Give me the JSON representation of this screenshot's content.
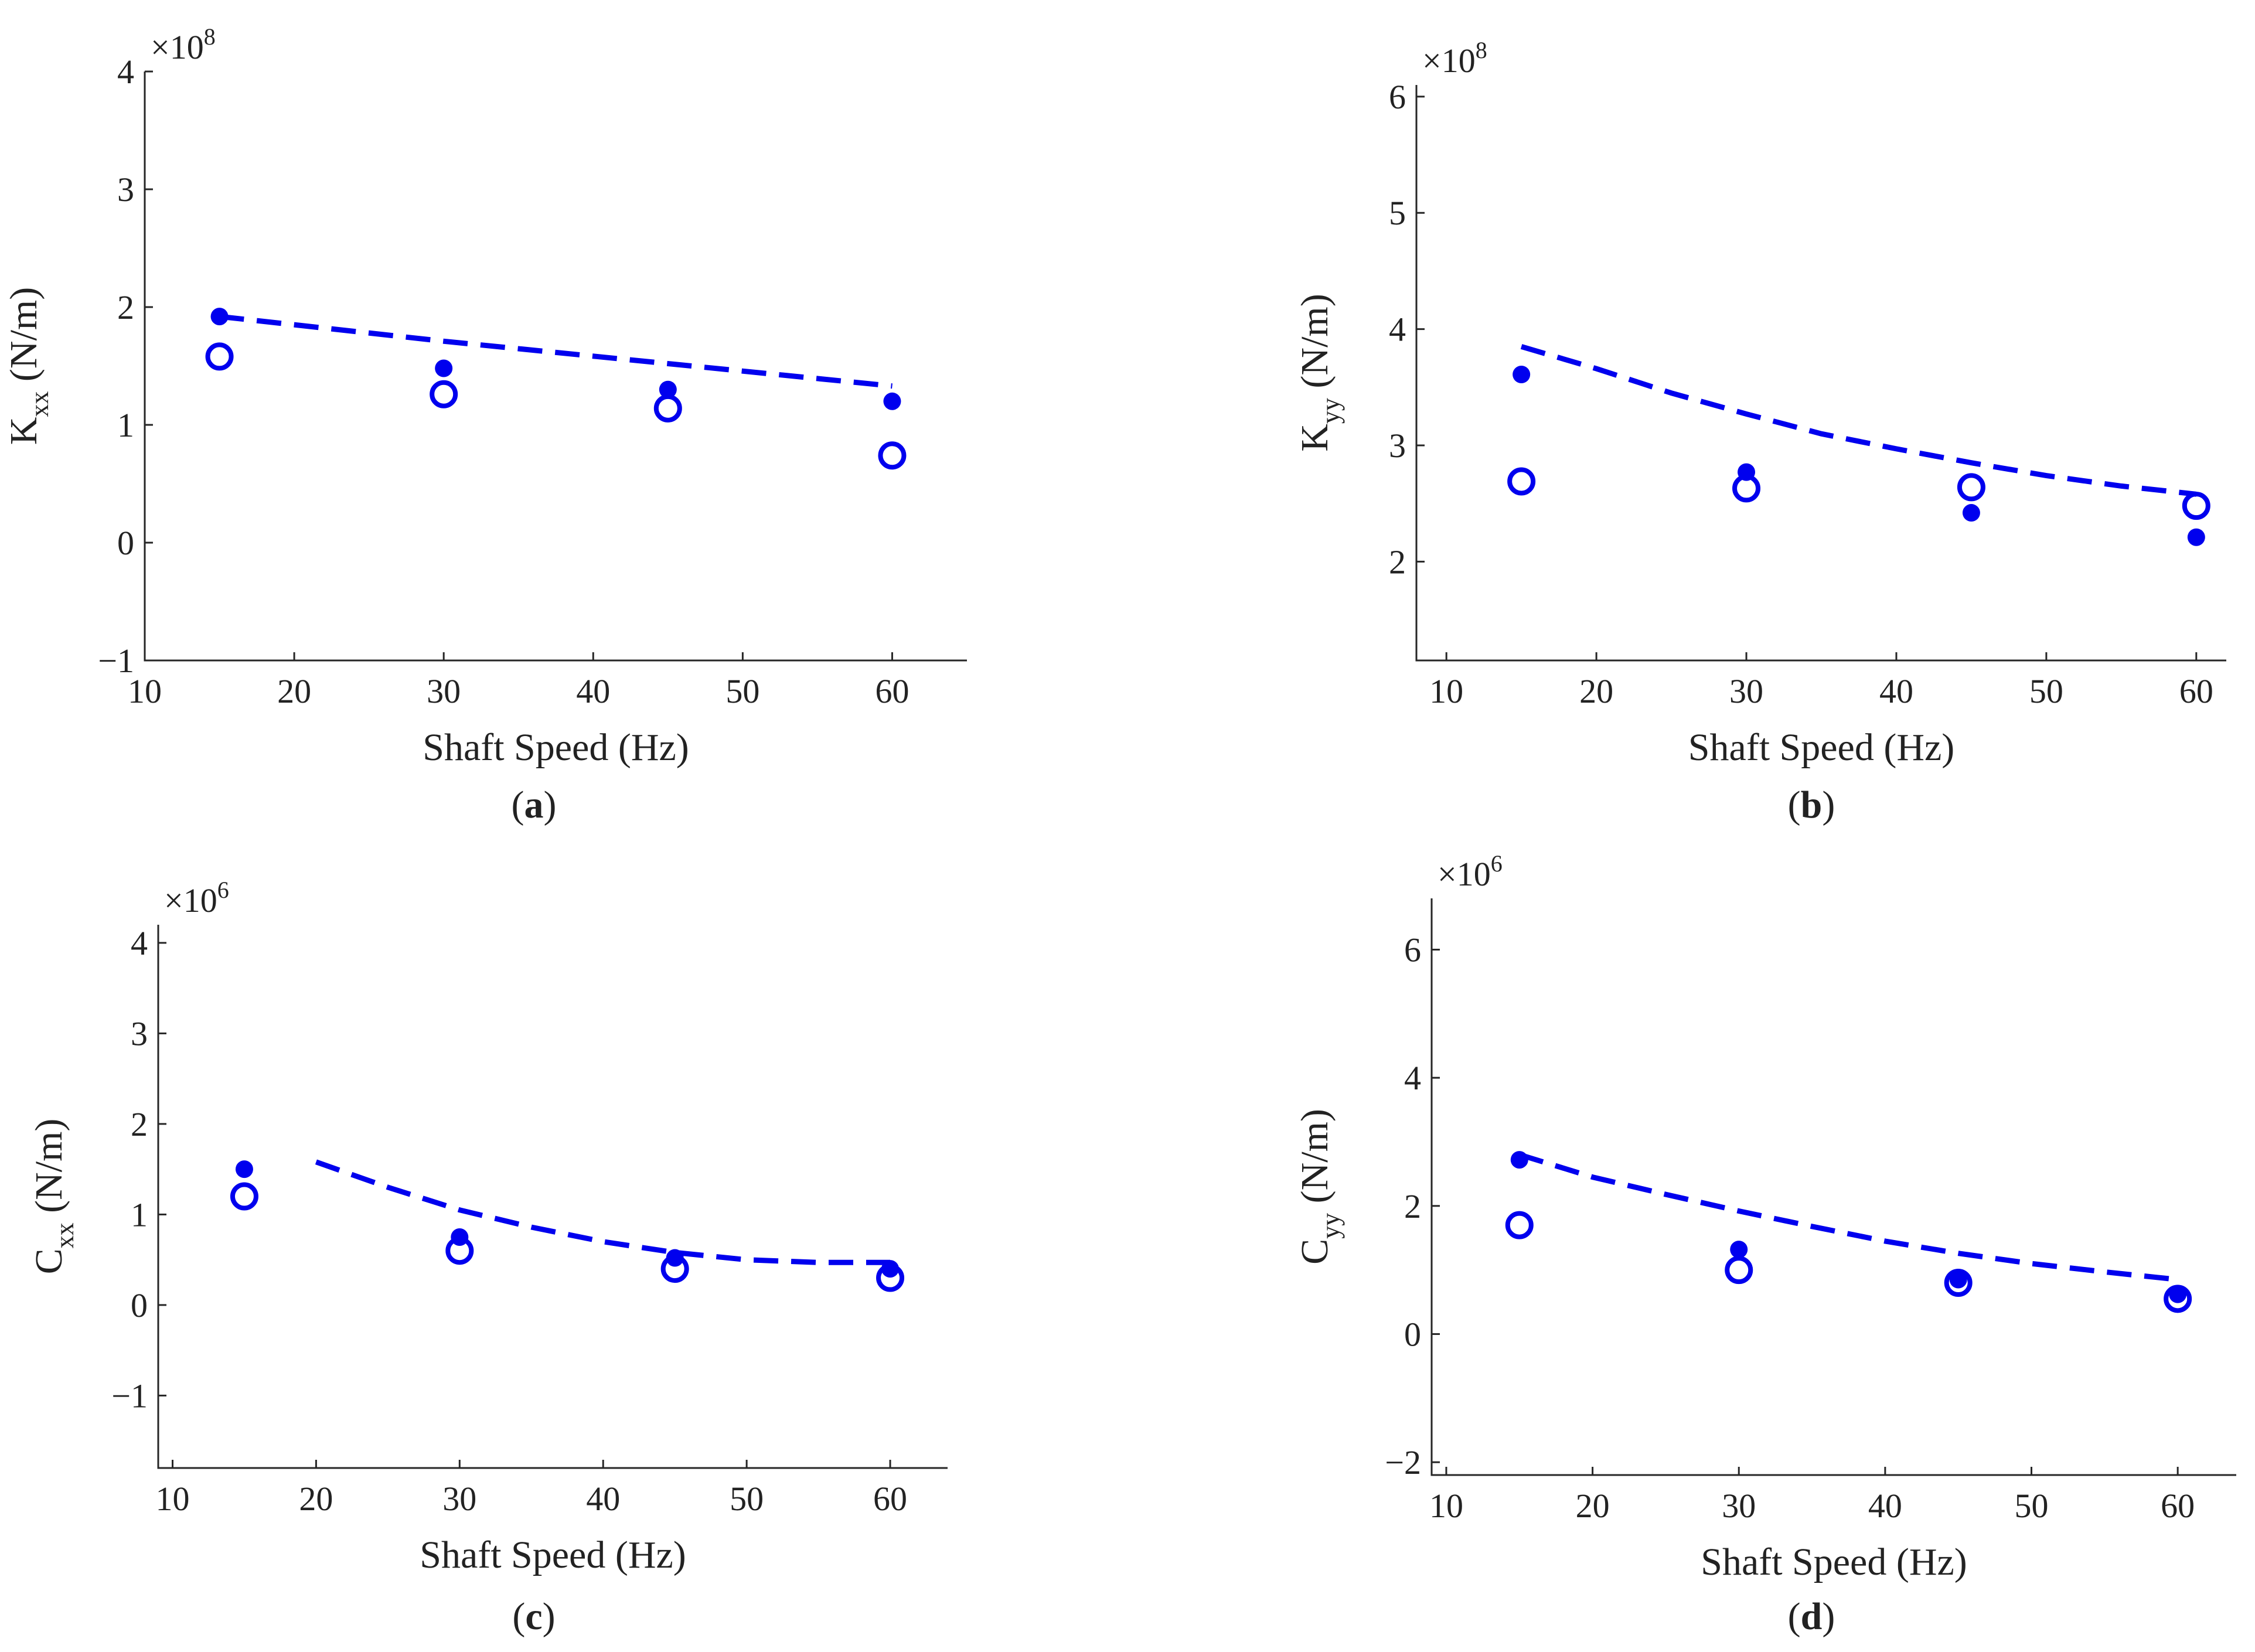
{
  "colors": {
    "series": "#0000ee",
    "axis": "#262626",
    "text": "#222222"
  },
  "chart_data": [
    {
      "id": "a",
      "type": "scatter",
      "panel_label": "a",
      "xlabel": "Shaft Speed (Hz)",
      "ylabel": {
        "main": "K",
        "sub": "xx",
        "unit": " (N/m)"
      },
      "y_multiplier": {
        "base": "×10",
        "exp": "8"
      },
      "xlim": [
        10,
        65
      ],
      "ylim": [
        -1,
        4
      ],
      "xticks": [
        10,
        20,
        30,
        40,
        50,
        60
      ],
      "yticks": [
        -1,
        0,
        1,
        2,
        3,
        4
      ],
      "ytick_labels": [
        "−1",
        "0",
        "1",
        "2",
        "3",
        "4"
      ],
      "series": [
        {
          "name": "filled",
          "style": "filled-dot",
          "x": [
            15,
            30,
            45,
            60
          ],
          "y": [
            1.92,
            1.48,
            1.3,
            1.2
          ]
        },
        {
          "name": "open",
          "style": "open-circle",
          "x": [
            15,
            30,
            45,
            60
          ],
          "y": [
            1.58,
            1.26,
            1.14,
            0.74
          ]
        },
        {
          "name": "dashed",
          "style": "dashed-line",
          "x": [
            15,
            30,
            45,
            60
          ],
          "y": [
            1.92,
            1.71,
            1.52,
            1.33
          ]
        }
      ]
    },
    {
      "id": "b",
      "type": "scatter",
      "panel_label": "b",
      "xlabel": "Shaft Speed (Hz)",
      "ylabel": {
        "main": "K",
        "sub": "yy",
        "unit": " (N/m)"
      },
      "y_multiplier": {
        "base": "×10",
        "exp": "8"
      },
      "xlim": [
        8,
        62
      ],
      "ylim": [
        1.15,
        6.1
      ],
      "xticks": [
        10,
        20,
        30,
        40,
        50,
        60
      ],
      "yticks": [
        2,
        3,
        4,
        5,
        6
      ],
      "ytick_labels": [
        "2",
        "3",
        "4",
        "5",
        "6"
      ],
      "series": [
        {
          "name": "filled",
          "style": "filled-dot",
          "x": [
            15,
            30,
            45,
            60
          ],
          "y": [
            3.61,
            2.77,
            2.42,
            2.21
          ]
        },
        {
          "name": "open",
          "style": "open-circle",
          "x": [
            15,
            30,
            45,
            60
          ],
          "y": [
            2.69,
            2.63,
            2.64,
            2.48
          ]
        },
        {
          "name": "dashed",
          "style": "dashed-line",
          "x": [
            15,
            20,
            25,
            30,
            35,
            40,
            45,
            50,
            55,
            60
          ],
          "y": [
            3.85,
            3.66,
            3.45,
            3.27,
            3.1,
            2.97,
            2.85,
            2.74,
            2.65,
            2.58
          ]
        }
      ]
    },
    {
      "id": "c",
      "type": "scatter",
      "panel_label": "c",
      "xlabel": "Shaft Speed (Hz)",
      "ylabel": {
        "main": "C",
        "sub": "xx",
        "unit": " (N/m)"
      },
      "y_multiplier": {
        "base": "×10",
        "exp": "6"
      },
      "xlim": [
        9,
        64
      ],
      "ylim": [
        -1.8,
        4.2
      ],
      "xticks": [
        10,
        20,
        30,
        40,
        50,
        60
      ],
      "yticks": [
        -1,
        0,
        1,
        2,
        3,
        4
      ],
      "ytick_labels": [
        "−1",
        "0",
        "1",
        "2",
        "3",
        "4"
      ],
      "series": [
        {
          "name": "filled",
          "style": "filled-dot",
          "x": [
            15,
            30,
            45,
            60
          ],
          "y": [
            1.5,
            0.75,
            0.52,
            0.4
          ]
        },
        {
          "name": "open",
          "style": "open-circle",
          "x": [
            15,
            30,
            45,
            60
          ],
          "y": [
            1.2,
            0.6,
            0.4,
            0.3
          ]
        },
        {
          "name": "dashed",
          "style": "dashed-line",
          "x": [
            20,
            25,
            30,
            35,
            40,
            45,
            50,
            55,
            60
          ],
          "y": [
            1.58,
            1.3,
            1.05,
            0.86,
            0.7,
            0.58,
            0.5,
            0.47,
            0.47
          ]
        }
      ]
    },
    {
      "id": "d",
      "type": "scatter",
      "panel_label": "d",
      "xlabel": "Shaft Speed (Hz)",
      "ylabel": {
        "main": "C",
        "sub": "yy",
        "unit": " (N/m)"
      },
      "y_multiplier": {
        "base": "×10",
        "exp": "6"
      },
      "xlim": [
        9,
        64
      ],
      "ylim": [
        -2.2,
        6.8
      ],
      "xticks": [
        10,
        20,
        30,
        40,
        50,
        60
      ],
      "yticks": [
        -2,
        0,
        2,
        4,
        6
      ],
      "ytick_labels": [
        "−2",
        "0",
        "2",
        "4",
        "6"
      ],
      "series": [
        {
          "name": "filled",
          "style": "filled-dot",
          "x": [
            15,
            30,
            45,
            60
          ],
          "y": [
            2.72,
            1.32,
            0.85,
            0.62
          ]
        },
        {
          "name": "open",
          "style": "open-circle",
          "x": [
            15,
            30,
            45,
            60
          ],
          "y": [
            1.7,
            1.0,
            0.8,
            0.55
          ]
        },
        {
          "name": "dashed",
          "style": "dashed-line",
          "x": [
            15,
            20,
            25,
            30,
            35,
            40,
            45,
            50,
            55,
            60
          ],
          "y": [
            2.8,
            2.45,
            2.18,
            1.92,
            1.68,
            1.45,
            1.26,
            1.1,
            0.97,
            0.85
          ]
        }
      ]
    }
  ]
}
